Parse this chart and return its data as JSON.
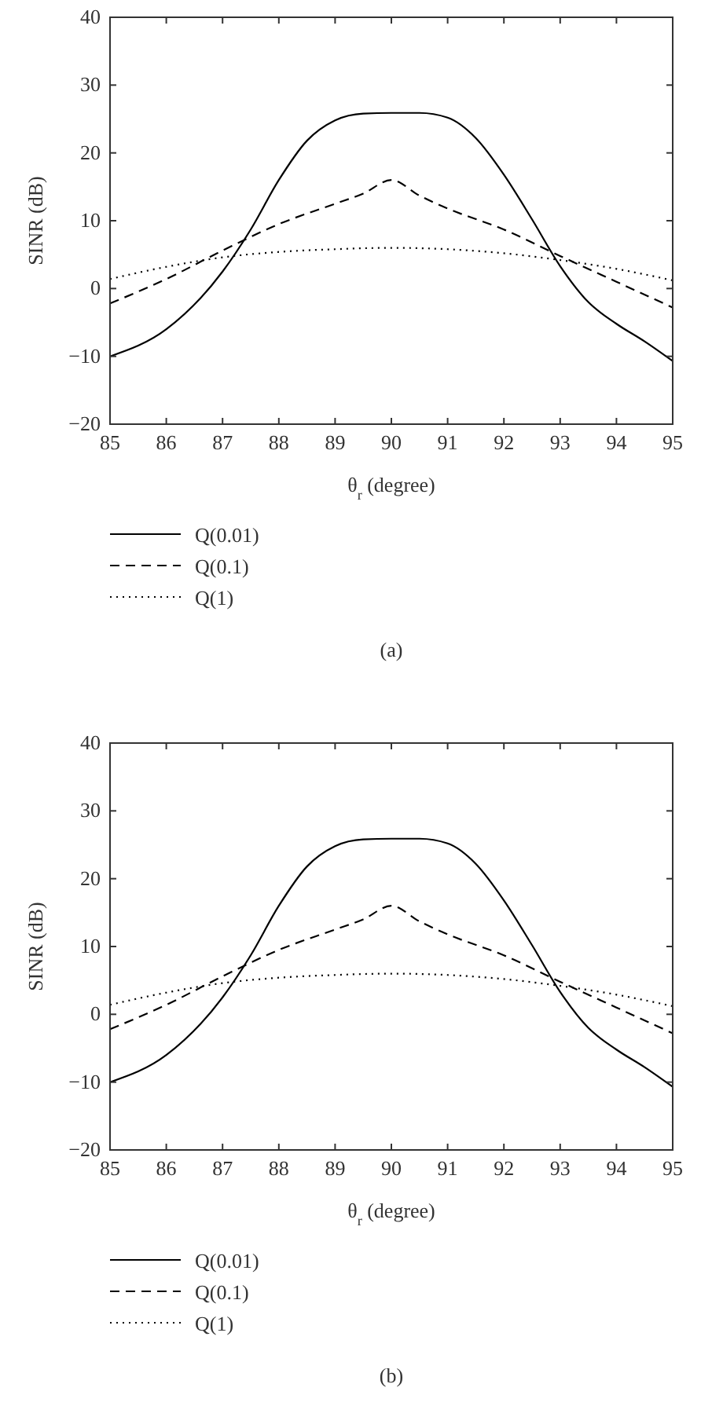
{
  "chart_data": [
    {
      "type": "line",
      "xlabel": "θ$_{r}$ (degree)",
      "ylabel": "SINR (dB)",
      "x": [
        85,
        86,
        87,
        87.5,
        88,
        88.5,
        89,
        89.5,
        90,
        90.5,
        91,
        91.5,
        92,
        92.5,
        93,
        93.5,
        94,
        94.5,
        95
      ],
      "xlim": [
        85,
        95
      ],
      "ylim": [
        -20,
        40
      ],
      "xticks": [
        85,
        86,
        87,
        88,
        89,
        90,
        91,
        92,
        93,
        94,
        95
      ],
      "yticks": [
        -20,
        -10,
        0,
        10,
        20,
        30,
        40
      ],
      "legend": "bottom",
      "grid": false,
      "annotations": [
        "(a)"
      ],
      "series": [
        {
          "name": "Q(0.01)",
          "color": "#000000",
          "line_style": "solid",
          "values": [
            -10,
            -6,
            2.5,
            8.7,
            16,
            21.8,
            24.8,
            25.8,
            25.9,
            25.9,
            25.2,
            22.2,
            16.8,
            10.2,
            3.3,
            -2,
            -5.2,
            -7.8,
            -10.7
          ]
        },
        {
          "name": "Q(0.1)",
          "color": "#000000",
          "line_style": "dashed",
          "x": [
            85,
            86,
            87,
            88,
            89,
            89.5,
            90,
            90.5,
            91,
            92,
            93,
            94,
            95
          ],
          "values": [
            -2.2,
            1.4,
            5.6,
            9.5,
            12.5,
            14,
            16,
            13.7,
            11.8,
            8.7,
            4.8,
            1,
            -2.8
          ]
        },
        {
          "name": "Q(1)",
          "color": "#000000",
          "line_style": "dotted",
          "x": [
            85,
            86,
            87,
            88,
            89,
            90,
            91,
            92,
            93,
            94,
            95
          ],
          "values": [
            1.4,
            3.2,
            4.6,
            5.4,
            5.8,
            6,
            5.8,
            5.2,
            4.2,
            2.9,
            1.2
          ]
        }
      ]
    },
    {
      "type": "line",
      "xlabel": "θ$_{r}$ (degree)",
      "ylabel": "SINR (dB)",
      "x": [
        85,
        86,
        87,
        87.5,
        88,
        88.5,
        89,
        89.5,
        90,
        90.5,
        91,
        91.5,
        92,
        92.5,
        93,
        93.5,
        94,
        94.5,
        95
      ],
      "xlim": [
        85,
        95
      ],
      "ylim": [
        -20,
        40
      ],
      "xticks": [
        85,
        86,
        87,
        88,
        89,
        90,
        91,
        92,
        93,
        94,
        95
      ],
      "yticks": [
        -20,
        -10,
        0,
        10,
        20,
        30,
        40
      ],
      "legend": "bottom",
      "grid": false,
      "annotations": [
        "(b)"
      ],
      "series": [
        {
          "name": "Q(0.01)",
          "color": "#000000",
          "line_style": "solid",
          "values": [
            -10,
            -6,
            2.5,
            8.7,
            16,
            21.8,
            24.8,
            25.8,
            25.9,
            25.9,
            25.2,
            22.2,
            16.8,
            10.2,
            3.3,
            -2,
            -5.2,
            -7.8,
            -10.7
          ]
        },
        {
          "name": "Q(0.1)",
          "color": "#000000",
          "line_style": "dashed",
          "x": [
            85,
            86,
            87,
            88,
            89,
            89.5,
            90,
            90.5,
            91,
            92,
            93,
            94,
            95
          ],
          "values": [
            -2.2,
            1.4,
            5.6,
            9.5,
            12.5,
            14,
            16,
            13.7,
            11.8,
            8.7,
            4.8,
            1,
            -2.8
          ]
        },
        {
          "name": "Q(1)",
          "color": "#000000",
          "line_style": "dotted",
          "x": [
            85,
            86,
            87,
            88,
            89,
            90,
            91,
            92,
            93,
            94,
            95
          ],
          "values": [
            1.4,
            3.2,
            4.6,
            5.4,
            5.8,
            6,
            5.8,
            5.2,
            4.2,
            2.9,
            1.2
          ]
        }
      ]
    }
  ]
}
